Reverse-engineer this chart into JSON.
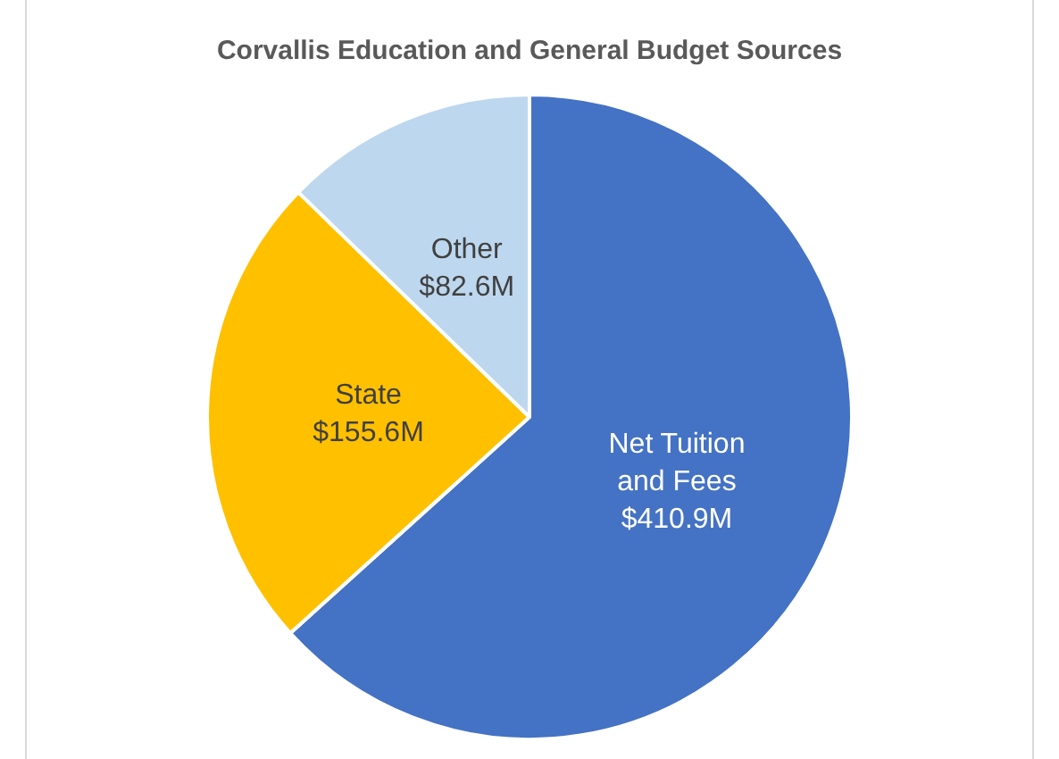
{
  "chart_data": {
    "type": "pie",
    "title": "Corvallis Education and General Budget Sources",
    "categories": [
      "Net Tuition and Fees",
      "State",
      "Other"
    ],
    "values": [
      410.9,
      155.6,
      82.6
    ],
    "value_labels": [
      "$410.9M",
      "$155.6M",
      "$82.6M"
    ],
    "colors": [
      "#4472c4",
      "#ffc000",
      "#bdd7ee"
    ],
    "legend": false
  }
}
